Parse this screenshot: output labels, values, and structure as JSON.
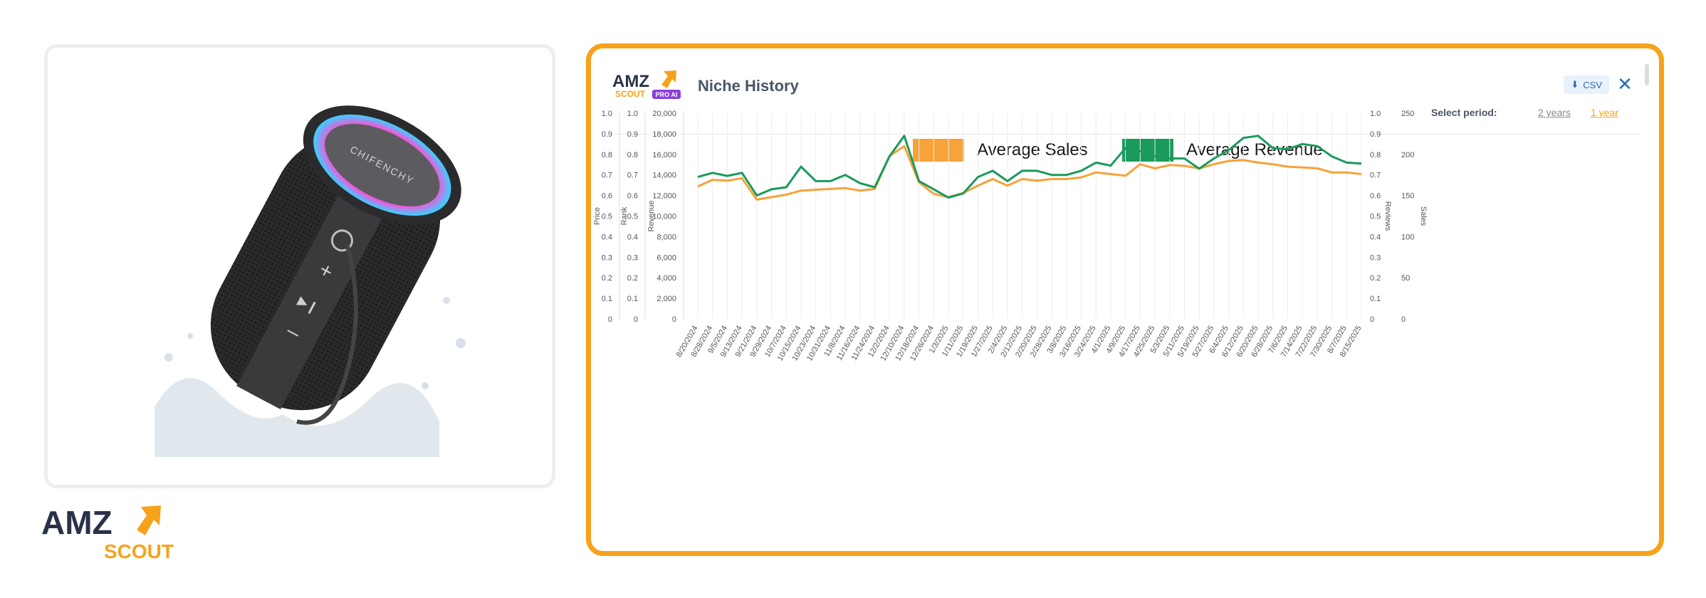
{
  "brand": {
    "amz": "AMZ",
    "scout": "SCOUT",
    "pro_ai": "PRO AI"
  },
  "product": {
    "speaker_brand": "CHIFENCHY"
  },
  "panel": {
    "title": "Niche History",
    "csv_label": "CSV",
    "close_label": "✕",
    "period_label": "Select period:",
    "period_options": [
      "2 years",
      "1 year"
    ],
    "selected_period": "1 year"
  },
  "colors": {
    "accent": "#f7a21b",
    "sales": "#f7a23a",
    "revenue": "#1a9a5c",
    "link": "#2b6cb0"
  },
  "chart_data": {
    "type": "line",
    "legend": [
      "Average Sales",
      "Average Revenue"
    ],
    "x": [
      "8/20/2024",
      "8/28/2024",
      "9/5/2024",
      "9/13/2024",
      "9/21/2024",
      "9/29/2024",
      "10/7/2024",
      "10/15/2024",
      "10/23/2024",
      "10/31/2024",
      "11/8/2024",
      "11/16/2024",
      "11/24/2024",
      "12/2/2024",
      "12/10/2024",
      "12/18/2024",
      "12/26/2024",
      "1/3/2025",
      "1/11/2025",
      "1/19/2025",
      "1/27/2025",
      "2/4/2025",
      "2/12/2025",
      "2/20/2025",
      "2/28/2025",
      "3/8/2025",
      "3/16/2025",
      "3/24/2025",
      "4/1/2025",
      "4/9/2025",
      "4/17/2025",
      "4/25/2025",
      "5/3/2025",
      "5/11/2025",
      "5/19/2025",
      "5/27/2025",
      "6/4/2025",
      "6/12/2025",
      "6/20/2025",
      "6/28/2025",
      "7/6/2025",
      "7/14/2025",
      "7/22/2025",
      "7/30/2025",
      "8/7/2025",
      "8/15/2025"
    ],
    "axes": {
      "price": {
        "label": "Price",
        "ticks": [
          "0",
          "0.1",
          "0.2",
          "0.3",
          "0.4",
          "0.5",
          "0.6",
          "0.7",
          "0.8",
          "0.9",
          "1.0"
        ]
      },
      "rank": {
        "label": "Rank",
        "ticks": [
          "0",
          "0.1",
          "0.2",
          "0.3",
          "0.4",
          "0.5",
          "0.6",
          "0.7",
          "0.8",
          "0.9",
          "1.0"
        ]
      },
      "revenue": {
        "label": "Revenue",
        "ticks": [
          "0",
          "2,000",
          "4,000",
          "6,000",
          "8,000",
          "10,000",
          "12,000",
          "14,000",
          "16,000",
          "18,000",
          "20,000"
        ],
        "ylim": [
          0,
          20000
        ]
      },
      "reviews": {
        "label": "Reviews",
        "ticks": [
          "0",
          "0.1",
          "0.2",
          "0.3",
          "0.4",
          "0.5",
          "0.6",
          "0.7",
          "0.8",
          "0.9",
          "1.0"
        ]
      },
      "sales": {
        "label": "Sales",
        "ticks": [
          "0",
          "",
          "50",
          "",
          "100",
          "",
          "150",
          "",
          "200",
          "",
          "250"
        ],
        "ylim": [
          0,
          250
        ]
      }
    },
    "series": [
      {
        "name": "Average Sales",
        "axis": "sales",
        "values": [
          161,
          169,
          168,
          171,
          145,
          148,
          151,
          156,
          157,
          158,
          159,
          156,
          158,
          198,
          210,
          166,
          152,
          148,
          153,
          162,
          170,
          162,
          170,
          168,
          170,
          170,
          172,
          178,
          176,
          174,
          188,
          183,
          187,
          186,
          183,
          188,
          192,
          193,
          190,
          188,
          185,
          184,
          183,
          178,
          178,
          176
        ]
      },
      {
        "name": "Average Revenue",
        "axis": "revenue",
        "values": [
          13800,
          14200,
          13900,
          14200,
          12000,
          12600,
          12800,
          14800,
          13400,
          13400,
          14000,
          13200,
          12800,
          15800,
          17800,
          13400,
          12600,
          11800,
          12200,
          13800,
          14400,
          13400,
          14400,
          14400,
          14000,
          14000,
          14400,
          15200,
          14900,
          16600,
          16300,
          15800,
          15600,
          15600,
          14600,
          15600,
          16400,
          17600,
          17800,
          16600,
          16500,
          17000,
          16800,
          15800,
          15200,
          15100
        ]
      }
    ]
  }
}
